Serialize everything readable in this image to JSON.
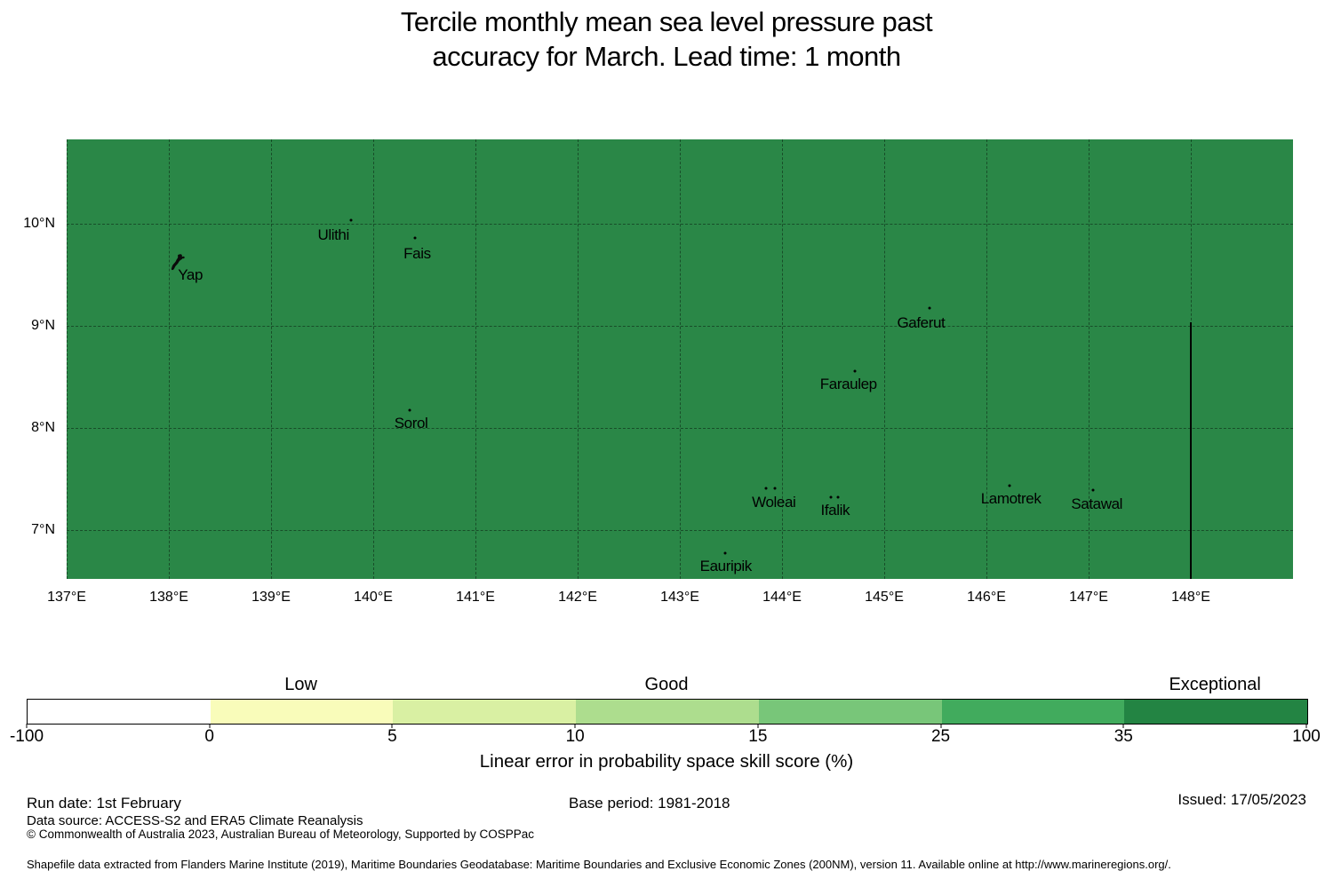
{
  "title": {
    "line1": "Tercile monthly mean sea level pressure past",
    "line2": "accuracy for March. Lead time: 1 month"
  },
  "map": {
    "fill_color": "#2a8747",
    "gridline_color": "rgba(0,0,0,0.42)",
    "extent": {
      "lon_min": 137,
      "lon_max": 149,
      "lat_min": 6.52,
      "lat_max": 10.83
    },
    "x_ticks": [
      {
        "lon": 137,
        "label": "137°E"
      },
      {
        "lon": 138,
        "label": "138°E"
      },
      {
        "lon": 139,
        "label": "139°E"
      },
      {
        "lon": 140,
        "label": "140°E"
      },
      {
        "lon": 141,
        "label": "141°E"
      },
      {
        "lon": 142,
        "label": "142°E"
      },
      {
        "lon": 143,
        "label": "143°E"
      },
      {
        "lon": 144,
        "label": "144°E"
      },
      {
        "lon": 145,
        "label": "145°E"
      },
      {
        "lon": 146,
        "label": "146°E"
      },
      {
        "lon": 147,
        "label": "147°E"
      },
      {
        "lon": 148,
        "label": "148°E"
      }
    ],
    "y_ticks": [
      {
        "lat": 10,
        "label": "10°N"
      },
      {
        "lat": 9,
        "label": "9°N"
      },
      {
        "lat": 8,
        "label": "8°N"
      },
      {
        "lat": 7,
        "label": "7°N"
      }
    ],
    "islands": [
      {
        "name": "yap",
        "label": "Yap",
        "label_lon": 138.21,
        "label_lat": 9.5,
        "dots": [],
        "shape": {
          "lon": 138.09,
          "lat": 9.58
        }
      },
      {
        "name": "ulithi",
        "label": "Ulithi",
        "label_lon": 139.61,
        "label_lat": 9.89,
        "dots": [
          {
            "lon": 139.78,
            "lat": 10.04
          }
        ]
      },
      {
        "name": "fais",
        "label": "Fais",
        "label_lon": 140.43,
        "label_lat": 9.71,
        "dots": [
          {
            "lon": 140.41,
            "lat": 9.86
          }
        ]
      },
      {
        "name": "sorol",
        "label": "Sorol",
        "label_lon": 140.37,
        "label_lat": 8.04,
        "dots": [
          {
            "lon": 140.36,
            "lat": 8.17
          }
        ]
      },
      {
        "name": "gaferut",
        "label": "Gaferut",
        "label_lon": 145.36,
        "label_lat": 9.03,
        "dots": [
          {
            "lon": 145.44,
            "lat": 9.18
          }
        ]
      },
      {
        "name": "faraulep",
        "label": "Faraulep",
        "label_lon": 144.65,
        "label_lat": 8.43,
        "dots": [
          {
            "lon": 144.71,
            "lat": 8.56
          }
        ]
      },
      {
        "name": "woleai",
        "label": "Woleai",
        "label_lon": 143.92,
        "label_lat": 7.27,
        "dots": [
          {
            "lon": 143.84,
            "lat": 7.41
          },
          {
            "lon": 143.93,
            "lat": 7.41
          }
        ]
      },
      {
        "name": "ifalik",
        "label": "Ifalik",
        "label_lon": 144.52,
        "label_lat": 7.19,
        "dots": [
          {
            "lon": 144.48,
            "lat": 7.32
          },
          {
            "lon": 144.55,
            "lat": 7.32
          }
        ]
      },
      {
        "name": "lamotrek",
        "label": "Lamotrek",
        "label_lon": 146.24,
        "label_lat": 7.3,
        "dots": [
          {
            "lon": 146.23,
            "lat": 7.43
          }
        ]
      },
      {
        "name": "satawal",
        "label": "Satawal",
        "label_lon": 147.08,
        "label_lat": 7.25,
        "dots": [
          {
            "lon": 147.04,
            "lat": 7.39
          }
        ]
      },
      {
        "name": "eauripik",
        "label": "Eauripik",
        "label_lon": 143.45,
        "label_lat": 6.64,
        "dots": [
          {
            "lon": 143.44,
            "lat": 6.77
          }
        ]
      }
    ],
    "eez_boundary": {
      "lon": 148,
      "lat_top": 9.04
    }
  },
  "colorbar": {
    "boundaries": [
      "-100",
      "0",
      "5",
      "10",
      "15",
      "25",
      "35",
      "100"
    ],
    "segment_colors": [
      "#ffffff",
      "#f9fcba",
      "#d9f0a3",
      "#addd8e",
      "#78c679",
      "#41ab5d",
      "#238443"
    ],
    "category_labels": [
      {
        "text": "Low",
        "segment_index": 1
      },
      {
        "text": "Good",
        "segment_index": 3
      },
      {
        "text": "Exceptional",
        "segment_index": 6
      }
    ],
    "axis_label": "Linear error in probability space skill score (%)"
  },
  "footer": {
    "run_date": "Run date: 1st February",
    "base_period": "Base period: 1981-2018",
    "issued": "Issued: 17/05/2023",
    "data_source": "Data source: ACCESS-S2 and ERA5 Climate Reanalysis",
    "copyright": "© Commonwealth of Australia 2023, Australian Bureau of Meteorology, Supported by COSPPac",
    "shapefile_note": "Shapefile data extracted from Flanders Marine Institute (2019), Maritime Boundaries Geodatabase: Maritime Boundaries and Exclusive Economic Zones (200NM), version 11. Available online at http://www.marineregions.org/."
  }
}
